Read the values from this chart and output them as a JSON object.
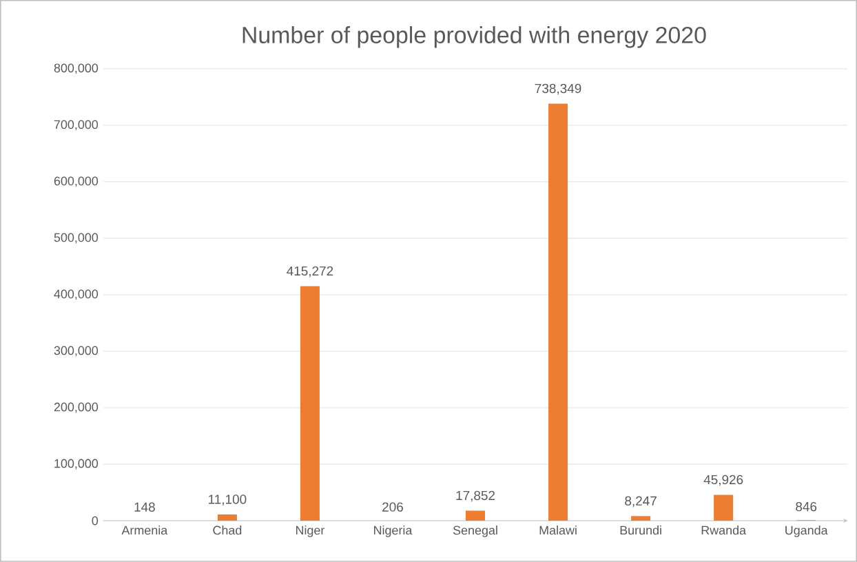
{
  "chart_data": {
    "type": "bar",
    "title": "Number of people provided with energy 2020",
    "categories": [
      "Armenia",
      "Chad",
      "Niger",
      "Nigeria",
      "Senegal",
      "Malawi",
      "Burundi",
      "Rwanda",
      "Uganda"
    ],
    "values": [
      148,
      11100,
      415272,
      206,
      17852,
      738349,
      8247,
      45926,
      846
    ],
    "value_labels": [
      "148",
      "11,100",
      "415,272",
      "206",
      "17,852",
      "738,349",
      "8,247",
      "45,926",
      "846"
    ],
    "color": "#ed7d31",
    "ylim": [
      0,
      800000
    ],
    "yticks": [
      {
        "value": 0,
        "label": "0"
      },
      {
        "value": 100000,
        "label": "100,000"
      },
      {
        "value": 200000,
        "label": "200,000"
      },
      {
        "value": 300000,
        "label": "300,000"
      },
      {
        "value": 400000,
        "label": "400,000"
      },
      {
        "value": 500000,
        "label": "500,000"
      },
      {
        "value": 600000,
        "label": "600,000"
      },
      {
        "value": 700000,
        "label": "700,000"
      },
      {
        "value": 800000,
        "label": "800,000"
      }
    ],
    "grid": "y"
  }
}
